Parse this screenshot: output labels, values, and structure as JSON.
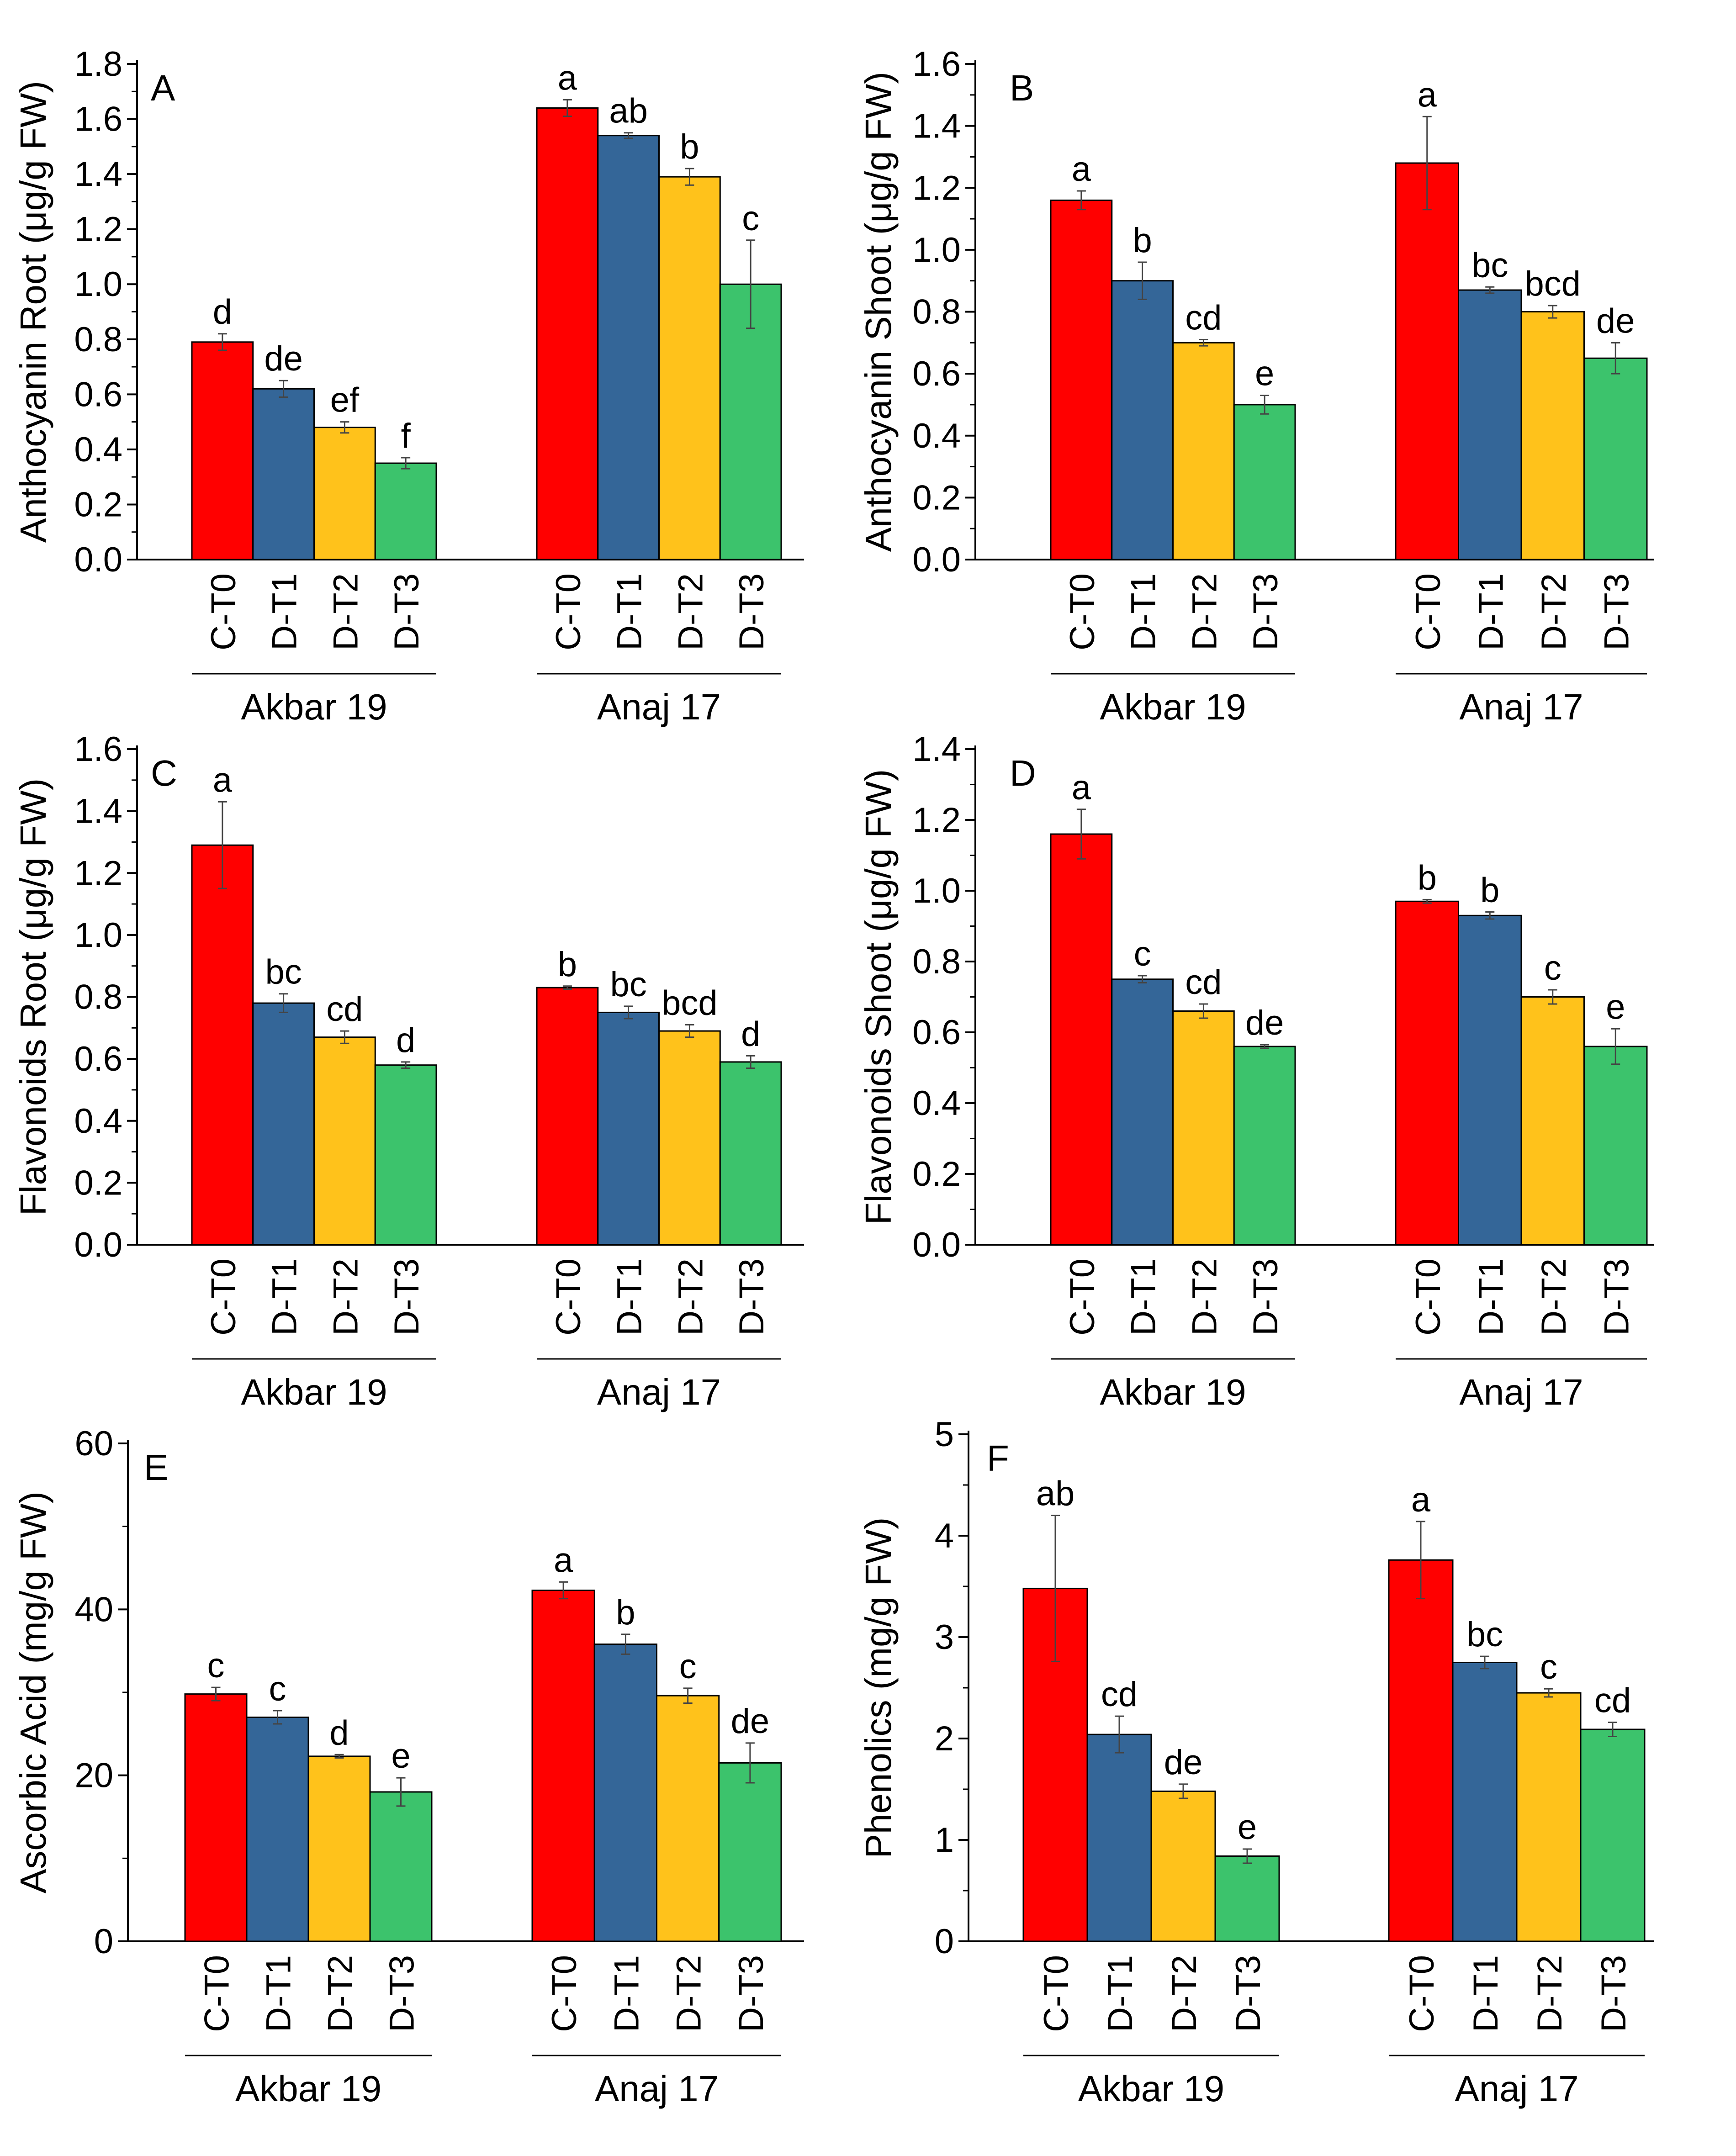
{
  "figure": {
    "groups": [
      "Akbar 19",
      "Anaj 17"
    ],
    "treatments": [
      "C-T0",
      "D-T1",
      "D-T2",
      "D-T3"
    ],
    "colors": [
      "#ff0000",
      "#346698",
      "#ffc21b",
      "#3cc36c"
    ]
  },
  "chart_data": [
    {
      "type": "bar",
      "panel": "A",
      "ylabel": "Anthocyanin Root (μg/g FW)",
      "ylim": [
        0,
        1.8
      ],
      "yticks": [
        "0.0",
        "0.2",
        "0.4",
        "0.6",
        "0.8",
        "1.0",
        "1.2",
        "1.4",
        "1.6",
        "1.8"
      ],
      "categories": [
        "Akbar 19",
        "Anaj 17"
      ],
      "series": [
        {
          "name": "C-T0",
          "values": [
            0.79,
            1.64
          ],
          "errors": [
            0.03,
            0.03
          ],
          "labels": [
            "d",
            "a"
          ]
        },
        {
          "name": "D-T1",
          "values": [
            0.62,
            1.54
          ],
          "errors": [
            0.03,
            0.01
          ],
          "labels": [
            "de",
            "ab"
          ]
        },
        {
          "name": "D-T2",
          "values": [
            0.48,
            1.39
          ],
          "errors": [
            0.02,
            0.03
          ],
          "labels": [
            "ef",
            "b"
          ]
        },
        {
          "name": "D-T3",
          "values": [
            0.35,
            1.0
          ],
          "errors": [
            0.02,
            0.16
          ],
          "labels": [
            "f",
            "c"
          ]
        }
      ]
    },
    {
      "type": "bar",
      "panel": "B",
      "ylabel": "Anthocyanin Shoot (μg/g FW)",
      "ylim": [
        0,
        1.6
      ],
      "yticks": [
        "0.0",
        "0.2",
        "0.4",
        "0.6",
        "0.8",
        "1.0",
        "1.2",
        "1.4",
        "1.6"
      ],
      "categories": [
        "Akbar 19",
        "Anaj 17"
      ],
      "series": [
        {
          "name": "C-T0",
          "values": [
            1.16,
            1.28
          ],
          "errors": [
            0.03,
            0.15
          ],
          "labels": [
            "a",
            "a"
          ]
        },
        {
          "name": "D-T1",
          "values": [
            0.9,
            0.87
          ],
          "errors": [
            0.06,
            0.01
          ],
          "labels": [
            "b",
            "bc"
          ]
        },
        {
          "name": "D-T2",
          "values": [
            0.7,
            0.8
          ],
          "errors": [
            0.01,
            0.02
          ],
          "labels": [
            "cd",
            "bcd"
          ]
        },
        {
          "name": "D-T3",
          "values": [
            0.5,
            0.65
          ],
          "errors": [
            0.03,
            0.05
          ],
          "labels": [
            "e",
            "de"
          ]
        }
      ]
    },
    {
      "type": "bar",
      "panel": "C",
      "ylabel": "Flavonoids Root (μg/g FW)",
      "ylim": [
        0,
        1.6
      ],
      "yticks": [
        "0.0",
        "0.2",
        "0.4",
        "0.6",
        "0.8",
        "1.0",
        "1.2",
        "1.4",
        "1.6"
      ],
      "categories": [
        "Akbar 19",
        "Anaj 17"
      ],
      "series": [
        {
          "name": "C-T0",
          "values": [
            1.29,
            0.83
          ],
          "errors": [
            0.14,
            0.005
          ],
          "labels": [
            "a",
            "b"
          ]
        },
        {
          "name": "D-T1",
          "values": [
            0.78,
            0.75
          ],
          "errors": [
            0.03,
            0.02
          ],
          "labels": [
            "bc",
            "bc"
          ]
        },
        {
          "name": "D-T2",
          "values": [
            0.67,
            0.69
          ],
          "errors": [
            0.02,
            0.02
          ],
          "labels": [
            "cd",
            "bcd"
          ]
        },
        {
          "name": "D-T3",
          "values": [
            0.58,
            0.59
          ],
          "errors": [
            0.01,
            0.02
          ],
          "labels": [
            "d",
            "d"
          ]
        }
      ]
    },
    {
      "type": "bar",
      "panel": "D",
      "ylabel": "Flavonoids Shoot (μg/g FW)",
      "ylim": [
        0,
        1.4
      ],
      "yticks": [
        "0.0",
        "0.2",
        "0.4",
        "0.6",
        "0.8",
        "1.0",
        "1.2",
        "1.4"
      ],
      "categories": [
        "Akbar 19",
        "Anaj 17"
      ],
      "series": [
        {
          "name": "C-T0",
          "values": [
            1.16,
            0.97
          ],
          "errors": [
            0.07,
            0.005
          ],
          "labels": [
            "a",
            "b"
          ]
        },
        {
          "name": "D-T1",
          "values": [
            0.75,
            0.93
          ],
          "errors": [
            0.01,
            0.01
          ],
          "labels": [
            "c",
            "b"
          ]
        },
        {
          "name": "D-T2",
          "values": [
            0.66,
            0.7
          ],
          "errors": [
            0.02,
            0.02
          ],
          "labels": [
            "cd",
            "c"
          ]
        },
        {
          "name": "D-T3",
          "values": [
            0.56,
            0.56
          ],
          "errors": [
            0.005,
            0.05
          ],
          "labels": [
            "de",
            "e"
          ]
        }
      ]
    },
    {
      "type": "bar",
      "panel": "E",
      "ylabel": "Ascorbic Acid (mg/g FW)",
      "ylim": [
        0,
        60
      ],
      "yticks": [
        "0",
        "20",
        "40",
        "60"
      ],
      "minor_ticks": true,
      "categories": [
        "Akbar 19",
        "Anaj 17"
      ],
      "series": [
        {
          "name": "C-T0",
          "values": [
            29.8,
            42.3
          ],
          "errors": [
            0.8,
            1.0
          ],
          "labels": [
            "c",
            "a"
          ]
        },
        {
          "name": "D-T1",
          "values": [
            27.0,
            35.8
          ],
          "errors": [
            0.8,
            1.2
          ],
          "labels": [
            "c",
            "b"
          ]
        },
        {
          "name": "D-T2",
          "values": [
            22.3,
            29.6
          ],
          "errors": [
            0.2,
            0.9
          ],
          "labels": [
            "d",
            "c"
          ]
        },
        {
          "name": "D-T3",
          "values": [
            18.0,
            21.5
          ],
          "errors": [
            1.7,
            2.4
          ],
          "labels": [
            "e",
            "de"
          ]
        }
      ]
    },
    {
      "type": "bar",
      "panel": "F",
      "ylabel": "Phenolics  (mg/g FW)",
      "ylim": [
        0,
        5
      ],
      "yticks": [
        "0",
        "1",
        "2",
        "3",
        "4",
        "5"
      ],
      "minor_ticks": true,
      "categories": [
        "Akbar 19",
        "Anaj 17"
      ],
      "series": [
        {
          "name": "C-T0",
          "values": [
            3.48,
            3.76
          ],
          "errors": [
            0.72,
            0.38
          ],
          "labels": [
            "ab",
            "a"
          ]
        },
        {
          "name": "D-T1",
          "values": [
            2.04,
            2.75
          ],
          "errors": [
            0.18,
            0.06
          ],
          "labels": [
            "cd",
            "bc"
          ]
        },
        {
          "name": "D-T2",
          "values": [
            1.48,
            2.45
          ],
          "errors": [
            0.07,
            0.04
          ],
          "labels": [
            "de",
            "c"
          ]
        },
        {
          "name": "D-T3",
          "values": [
            0.84,
            2.09
          ],
          "errors": [
            0.07,
            0.07
          ],
          "labels": [
            "e",
            "cd"
          ]
        }
      ]
    }
  ]
}
